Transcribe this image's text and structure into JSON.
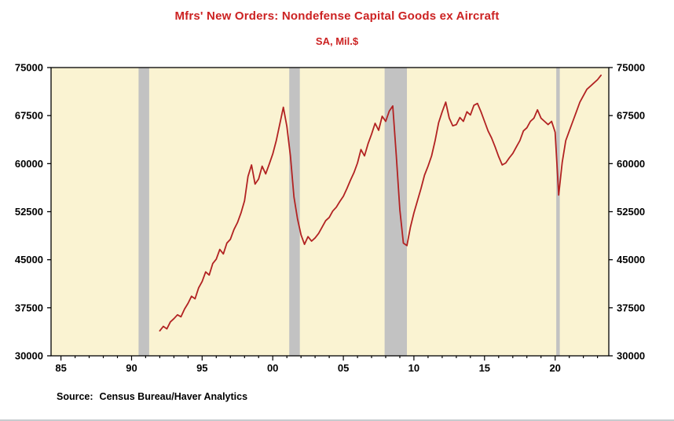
{
  "source": {
    "label": "Source:",
    "text": "Census Bureau/Haver Analytics"
  },
  "chart_data": {
    "type": "line",
    "title": "Mfrs' New Orders: Nondefense Capital Goods ex Aircraft",
    "subtitle": "SA, Mil.$",
    "xlabel": "",
    "ylabel": "",
    "xlim": [
      1984.3,
      2023.8
    ],
    "ylim": [
      30000,
      75000
    ],
    "grid": false,
    "legend": "none",
    "y_ticks": [
      {
        "v": 30000,
        "label": "30000"
      },
      {
        "v": 37500,
        "label": "37500"
      },
      {
        "v": 45000,
        "label": "45000"
      },
      {
        "v": 52500,
        "label": "52500"
      },
      {
        "v": 60000,
        "label": "60000"
      },
      {
        "v": 67500,
        "label": "67500"
      },
      {
        "v": 75000,
        "label": "75000"
      }
    ],
    "x_ticks": [
      {
        "v": 1985,
        "label": "85"
      },
      {
        "v": 1990,
        "label": "90"
      },
      {
        "v": 1995,
        "label": "95"
      },
      {
        "v": 2000,
        "label": "00"
      },
      {
        "v": 2005,
        "label": "05"
      },
      {
        "v": 2010,
        "label": "10"
      },
      {
        "v": 2015,
        "label": "15"
      },
      {
        "v": 2020,
        "label": "20"
      }
    ],
    "x_minor_step": 1,
    "recession_bands": [
      [
        1990.5,
        1991.25
      ],
      [
        2001.17,
        2001.92
      ],
      [
        2007.92,
        2009.5
      ],
      [
        2020.08,
        2020.33
      ]
    ],
    "series": [
      {
        "name": "Mfrs' New Orders: Nondefense Capital Goods ex Aircraft (SA, Mil.$)",
        "x_start": 1992.0,
        "x_step": 0.25,
        "values": [
          33900,
          34600,
          34200,
          35300,
          35800,
          36400,
          36100,
          37300,
          38200,
          39300,
          38900,
          40600,
          41600,
          43100,
          42600,
          44400,
          45100,
          46600,
          45900,
          47600,
          48200,
          49700,
          50800,
          52300,
          54200,
          58000,
          59800,
          56800,
          57600,
          59600,
          58400,
          59900,
          61500,
          63600,
          66200,
          68800,
          65800,
          61200,
          54800,
          51400,
          48900,
          47400,
          48600,
          47900,
          48400,
          49100,
          50100,
          51100,
          51600,
          52600,
          53200,
          54100,
          54900,
          56100,
          57400,
          58600,
          60100,
          62200,
          61200,
          63100,
          64600,
          66300,
          65200,
          67400,
          66600,
          68200,
          69000,
          61200,
          52800,
          47600,
          47200,
          50100,
          52300,
          54200,
          56100,
          58200,
          59600,
          61200,
          63600,
          66400,
          68100,
          69600,
          67100,
          65900,
          66100,
          67200,
          66600,
          68100,
          67600,
          69100,
          69400,
          68100,
          66600,
          65100,
          64000,
          62600,
          61100,
          59800,
          60100,
          60900,
          61600,
          62600,
          63600,
          65100,
          65600,
          66600,
          67100,
          68400,
          67100,
          66600,
          66100,
          66600,
          64900,
          55100,
          60200,
          63600,
          65100,
          66600,
          68100,
          69600,
          70600,
          71600,
          72100,
          72600,
          73100,
          73800
        ]
      }
    ],
    "colors": {
      "line": "#b22222",
      "title": "#cc2222",
      "plot_bg": "#faf3d2",
      "recession": "#c2c2c2",
      "axis": "#000000"
    }
  }
}
